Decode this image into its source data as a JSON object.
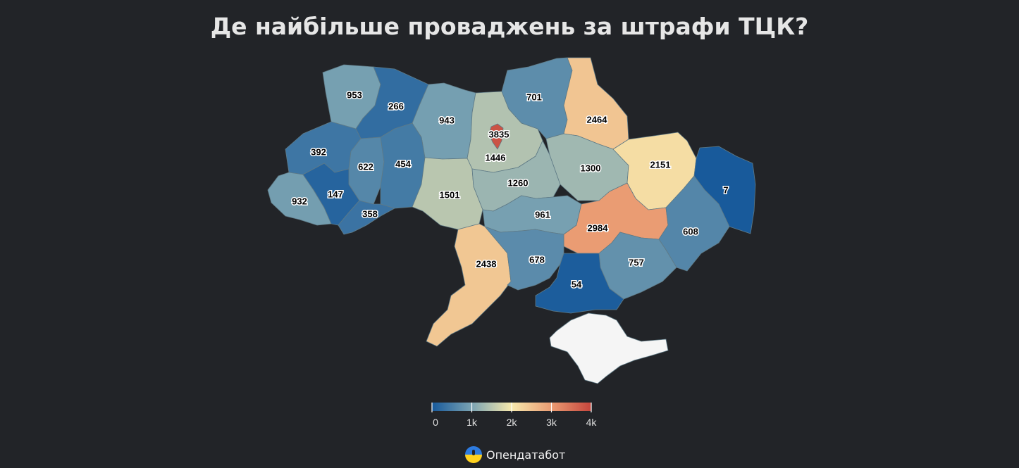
{
  "title": "Де найбільше проваджень за штрафи ТЦК?",
  "brand": {
    "name": "Опендатабот",
    "logo_icon": "opendatabot-logo-icon"
  },
  "chart_data": {
    "type": "choropleth",
    "title": "Де найбільше проваджень за штрафи ТЦК?",
    "regions": [
      {
        "id": "volyn",
        "value": 953
      },
      {
        "id": "rivne",
        "value": 266
      },
      {
        "id": "zhytomyr",
        "value": 943
      },
      {
        "id": "kyiv-oblast",
        "value": 1446
      },
      {
        "id": "kyiv-city",
        "value": 3835
      },
      {
        "id": "chernihiv",
        "value": 701
      },
      {
        "id": "sumy",
        "value": 2464
      },
      {
        "id": "lviv",
        "value": 392
      },
      {
        "id": "ternopil",
        "value": 622
      },
      {
        "id": "khmelnytskyi",
        "value": 454
      },
      {
        "id": "zakarpattia",
        "value": 932
      },
      {
        "id": "ivano-frankivsk",
        "value": 147
      },
      {
        "id": "chernivtsi",
        "value": 358
      },
      {
        "id": "vinnytsia",
        "value": 1501
      },
      {
        "id": "cherkasy",
        "value": 1260
      },
      {
        "id": "poltava",
        "value": 1300
      },
      {
        "id": "kharkiv",
        "value": 2151
      },
      {
        "id": "luhansk",
        "value": 7
      },
      {
        "id": "kirovohrad",
        "value": 961
      },
      {
        "id": "dnipropetrovsk",
        "value": 2984
      },
      {
        "id": "donetsk",
        "value": 608
      },
      {
        "id": "odesa",
        "value": 2438
      },
      {
        "id": "mykolaiv",
        "value": 678
      },
      {
        "id": "zaporizhzhia",
        "value": 757
      },
      {
        "id": "kherson",
        "value": 54
      },
      {
        "id": "crimea",
        "value": null
      }
    ],
    "color_scale": {
      "domain": [
        0,
        4000
      ],
      "colors": [
        "#17599b",
        "#7ba3b2",
        "#f7e9ad",
        "#ea9b72",
        "#c5453c"
      ],
      "no_data_color": "#f5f5f5"
    },
    "legend": {
      "ticks": [
        0,
        1000,
        2000,
        3000,
        4000
      ],
      "tick_labels": [
        "0",
        "1k",
        "2k",
        "3k",
        "4k"
      ]
    }
  }
}
